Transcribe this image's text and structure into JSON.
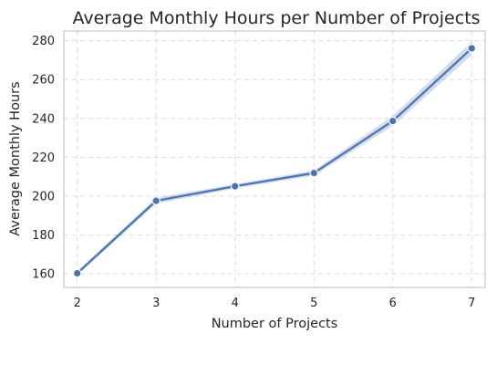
{
  "chart_data": {
    "type": "line",
    "title": "Average Monthly Hours per Number of Projects",
    "xlabel": "Number of Projects",
    "ylabel": "Average Monthly Hours",
    "x": [
      2,
      3,
      4,
      5,
      6,
      7
    ],
    "series": [
      {
        "values": [
          160.3,
          197.6,
          205.1,
          211.9,
          238.7,
          276.1
        ],
        "ci_lower": [
          159.2,
          196.1,
          204.0,
          210.5,
          236.2,
          272.6
        ],
        "ci_upper": [
          161.4,
          199.2,
          206.2,
          213.3,
          241.3,
          279.6
        ]
      }
    ],
    "xticks": [
      2,
      3,
      4,
      5,
      6,
      7
    ],
    "yticks": [
      160,
      180,
      200,
      220,
      240,
      260,
      280
    ],
    "xlim": [
      1.83,
      7.17
    ],
    "ylim": [
      153,
      285
    ],
    "grid": true,
    "colors": {
      "line": "#4c72b0",
      "band": "#4c72b0"
    }
  }
}
